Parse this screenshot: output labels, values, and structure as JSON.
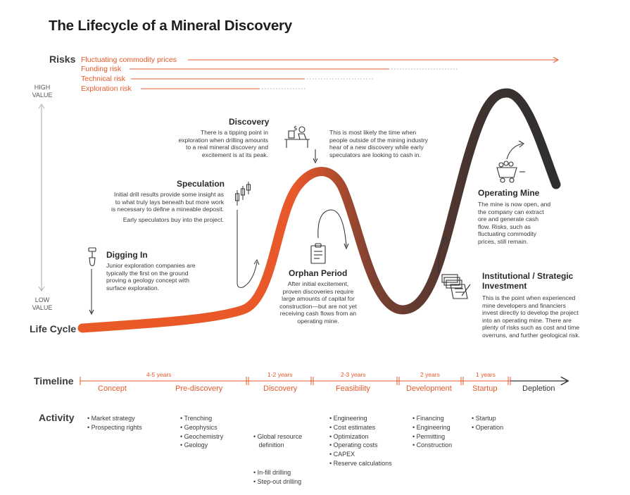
{
  "title": "The Lifecycle of a Mineral Discovery",
  "risks": {
    "label": "Risks",
    "items": [
      "Fluctuating commodity prices",
      "Funding risk",
      "Technical risk",
      "Exploration risk"
    ]
  },
  "value_axis": {
    "high": [
      "HIGH",
      "VALUE"
    ],
    "low": [
      "LOW",
      "VALUE"
    ]
  },
  "life_cycle_label": "Life Cycle",
  "stages": {
    "digging_in": {
      "title": "Digging In",
      "text": [
        "Junior exploration companies are",
        "typically the first on the ground",
        "proving a geology concept with",
        "surface exploration."
      ]
    },
    "speculation": {
      "title": "Speculation",
      "text": [
        "Initial drill results provide some insight as",
        "to what truly lays beneath but more work",
        "is necessary to define a mineable deposit."
      ],
      "text2": "Early speculators buy into the project."
    },
    "discovery": {
      "title": "Discovery",
      "text": [
        "There is a tipping point in",
        "exploration when drilling amounts",
        "to a real mineral discovery and",
        "excitement is at its peak."
      ],
      "text_right": [
        "This is most likely the time when",
        "people outside of the mining industry",
        "hear of a new discovery while early",
        "speculators are looking to cash in."
      ]
    },
    "orphan": {
      "title": "Orphan Period",
      "text": [
        "After initial excitement,",
        "proven discoveries require",
        "large amounts of capital for",
        "construction—but are not yet",
        "receiving cash flows from an",
        "operating mine."
      ]
    },
    "institutional": {
      "title": [
        "Institutional / Strategic",
        "Investment"
      ],
      "text": [
        "This is the point when experienced",
        "mine developers and financiers",
        "invest directly to develop the project",
        "into an operating mine. There are",
        "plenty of risks such as cost and time",
        "overruns, and further geological risk."
      ]
    },
    "operating": {
      "title": "Operating Mine",
      "text": [
        "The mine is now open, and",
        "the company can extract",
        "ore and generate cash",
        "flow. Risks, such as",
        "fluctuating commodity",
        "prices, still remain."
      ]
    }
  },
  "timeline": {
    "label": "Timeline",
    "phases": [
      "Concept",
      "Pre-discovery",
      "Discovery",
      "Feasibility",
      "Development",
      "Startup",
      "Depletion"
    ],
    "durations": [
      "4-5 years",
      "1-2 years",
      "2-3 years",
      "2 years",
      "1 years"
    ]
  },
  "activity": {
    "label": "Activity",
    "columns": [
      [
        "• Market strategy",
        "• Prospecting rights"
      ],
      [
        "• Trenching",
        "• Geophysics",
        "• Geochemistry",
        "• Geology"
      ],
      [
        "• Global resource",
        "   definition",
        "• In-fill drilling",
        "• Step-out drilling"
      ],
      [
        "• Engineering",
        "• Cost estimates",
        "• Optimization",
        "• Operating costs",
        "• CAPEX",
        "• Reserve calculations"
      ],
      [
        "• Financing",
        "• Engineering",
        "• Permitting",
        "• Construction"
      ],
      [
        "• Startup",
        "• Operation"
      ]
    ]
  },
  "colors": {
    "accent": "#e8582a",
    "dark": "#333333",
    "text": "#3a3a3a"
  }
}
